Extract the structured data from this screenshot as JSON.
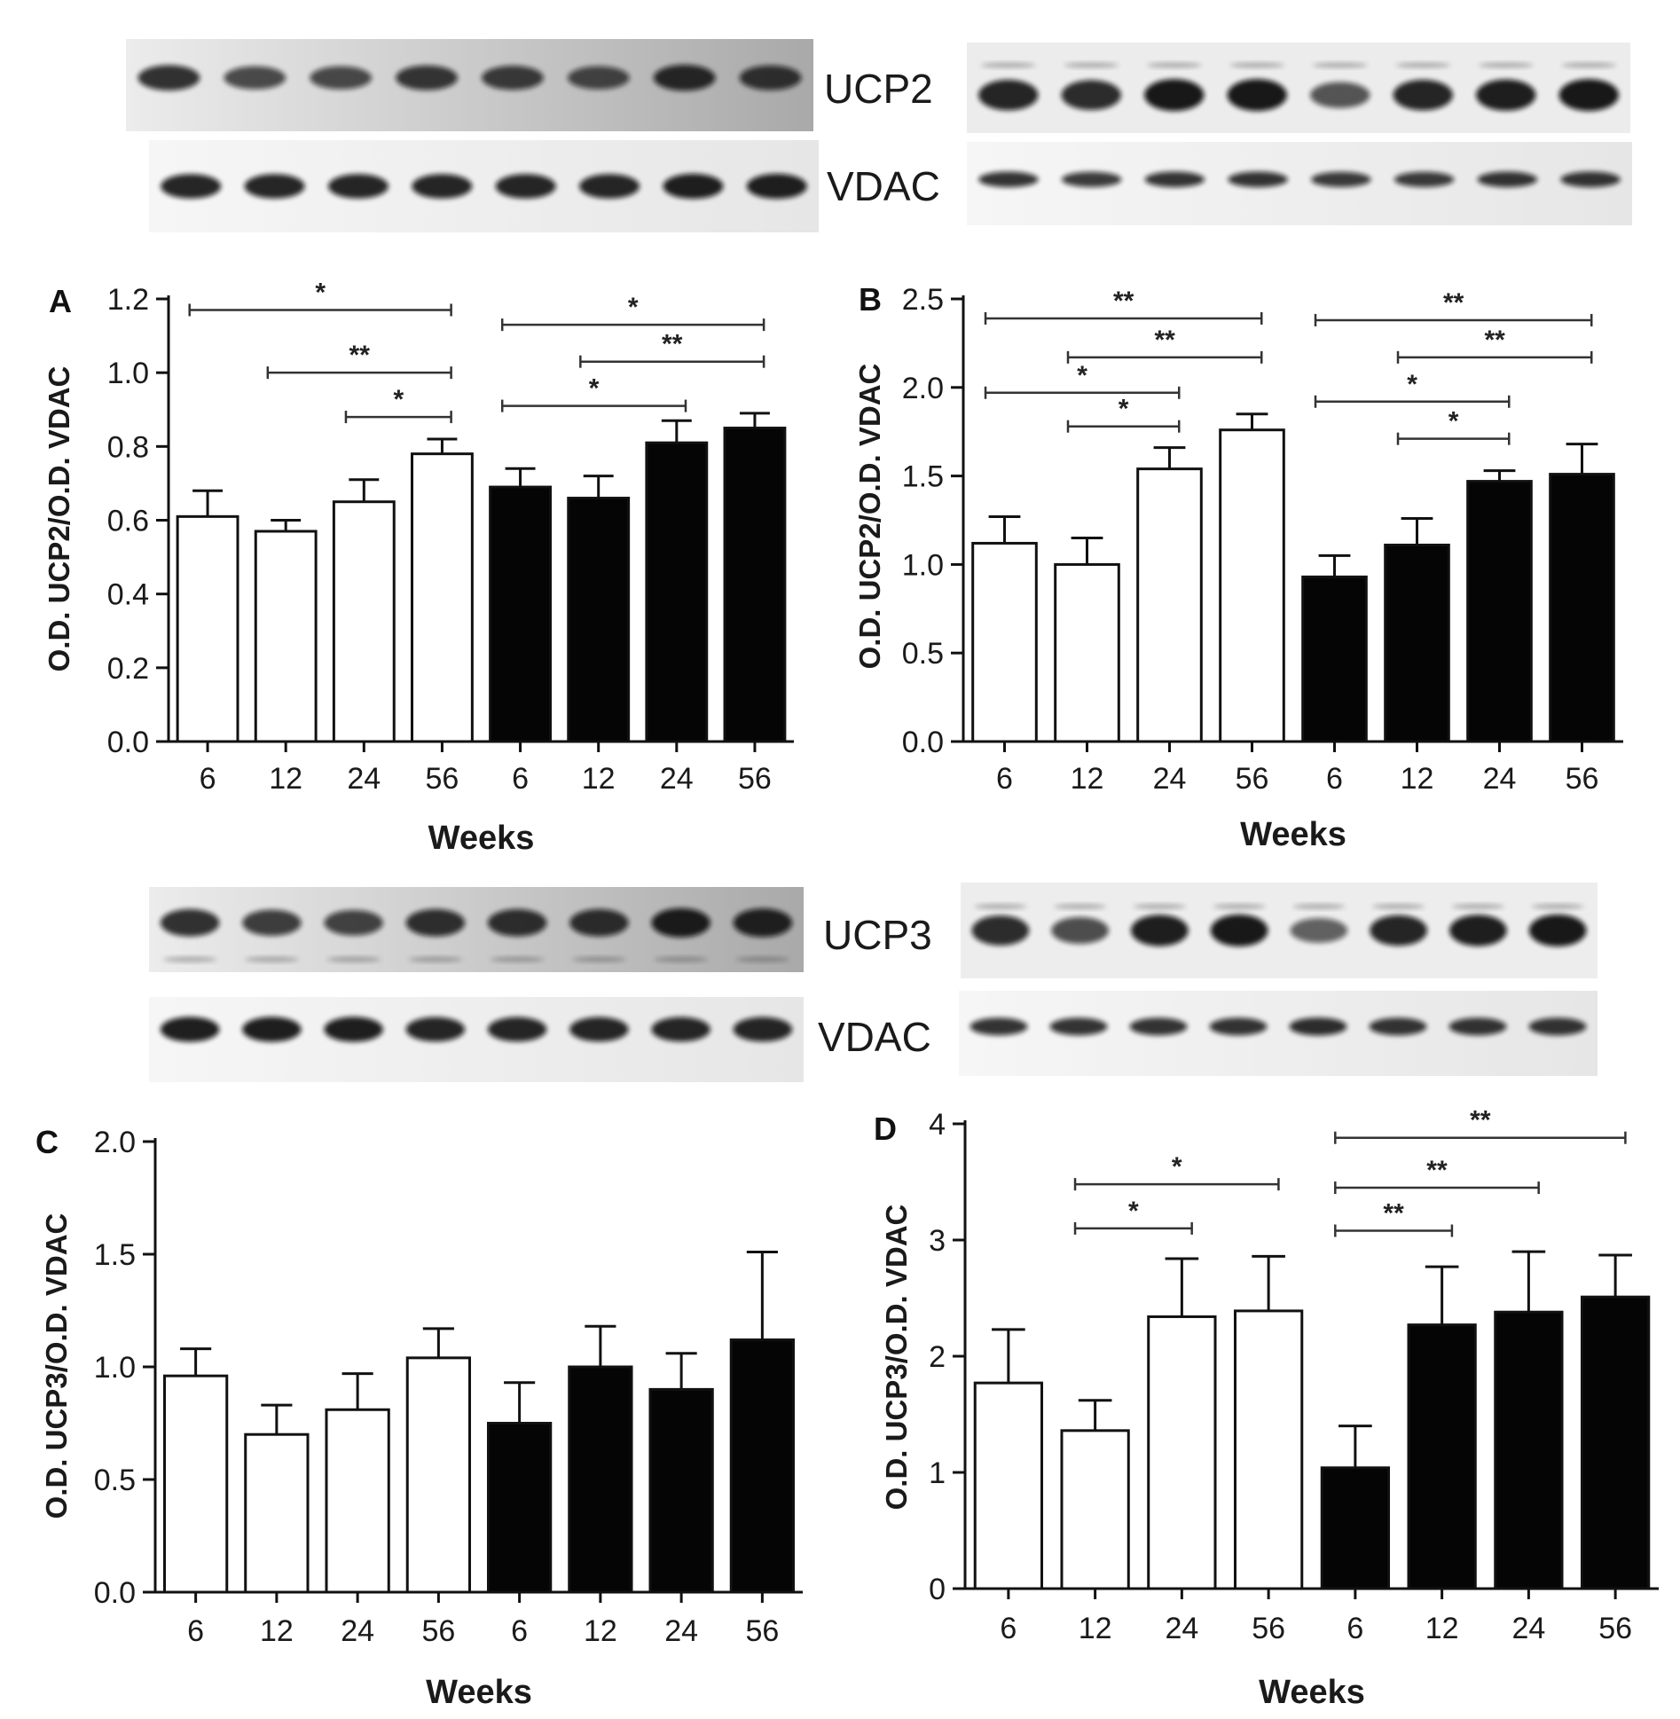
{
  "blots": {
    "top": {
      "protein_label": "UCP2",
      "control_label": "VDAC"
    },
    "bottom": {
      "protein_label": "UCP3",
      "control_label": "VDAC"
    }
  },
  "colors": {
    "group1_fill": "#ffffff",
    "group2_fill": "#050505",
    "stroke": "#111111"
  },
  "chart_data": [
    {
      "panel": "A",
      "type": "bar",
      "categories": [
        "6",
        "12",
        "24",
        "56",
        "6",
        "12",
        "24",
        "56"
      ],
      "series": [
        {
          "values": [
            0.61,
            0.57,
            0.65,
            0.78,
            0.69,
            0.66,
            0.81,
            0.85
          ],
          "errors": [
            0.07,
            0.03,
            0.06,
            0.04,
            0.05,
            0.06,
            0.06,
            0.04
          ]
        }
      ],
      "fills": [
        "white",
        "white",
        "white",
        "white",
        "black",
        "black",
        "black",
        "black"
      ],
      "xlabel": "Weeks",
      "ylabel": "O.D. UCP2/O.D. VDAC",
      "ylim": [
        0,
        1.2
      ],
      "yticks": [
        "0.0",
        "0.2",
        "0.4",
        "0.6",
        "0.8",
        "1.0",
        "1.2"
      ],
      "significance": [
        {
          "from": 0,
          "to": 3,
          "label": "*",
          "level": 1.17
        },
        {
          "from": 1,
          "to": 3,
          "label": "**",
          "level": 1.0
        },
        {
          "from": 2,
          "to": 3,
          "label": "*",
          "level": 0.88
        },
        {
          "from": 4,
          "to": 7,
          "label": "*",
          "level": 1.13
        },
        {
          "from": 5,
          "to": 7,
          "label": "**",
          "level": 1.03
        },
        {
          "from": 4,
          "to": 6,
          "label": "*",
          "level": 0.91
        }
      ]
    },
    {
      "panel": "B",
      "type": "bar",
      "categories": [
        "6",
        "12",
        "24",
        "56",
        "6",
        "12",
        "24",
        "56"
      ],
      "series": [
        {
          "values": [
            1.12,
            1.0,
            1.54,
            1.76,
            0.93,
            1.11,
            1.47,
            1.51
          ],
          "errors": [
            0.15,
            0.15,
            0.12,
            0.09,
            0.12,
            0.15,
            0.06,
            0.17
          ]
        }
      ],
      "fills": [
        "white",
        "white",
        "white",
        "white",
        "black",
        "black",
        "black",
        "black"
      ],
      "xlabel": "Weeks",
      "ylabel": "O.D. UCP2/O.D. VDAC",
      "ylim": [
        0,
        2.5
      ],
      "yticks": [
        "0.0",
        "0.5",
        "1.0",
        "1.5",
        "2.0",
        "2.5"
      ],
      "significance": [
        {
          "from": 0,
          "to": 3,
          "label": "**",
          "level": 2.39
        },
        {
          "from": 1,
          "to": 3,
          "label": "**",
          "level": 2.17
        },
        {
          "from": 0,
          "to": 2,
          "label": "*",
          "level": 1.97
        },
        {
          "from": 1,
          "to": 2,
          "label": "*",
          "level": 1.78
        },
        {
          "from": 4,
          "to": 7,
          "label": "**",
          "level": 2.38
        },
        {
          "from": 5,
          "to": 7,
          "label": "**",
          "level": 2.17
        },
        {
          "from": 4,
          "to": 6,
          "label": "*",
          "level": 1.92
        },
        {
          "from": 5,
          "to": 6,
          "label": "*",
          "level": 1.71
        }
      ]
    },
    {
      "panel": "C",
      "type": "bar",
      "categories": [
        "6",
        "12",
        "24",
        "56",
        "6",
        "12",
        "24",
        "56"
      ],
      "series": [
        {
          "values": [
            0.96,
            0.7,
            0.81,
            1.04,
            0.75,
            1.0,
            0.9,
            1.12
          ],
          "errors": [
            0.12,
            0.13,
            0.16,
            0.13,
            0.18,
            0.18,
            0.16,
            0.39
          ]
        }
      ],
      "fills": [
        "white",
        "white",
        "white",
        "white",
        "black",
        "black",
        "black",
        "black"
      ],
      "xlabel": "Weeks",
      "ylabel": "O.D. UCP3/O.D. VDAC",
      "ylim": [
        0,
        2.0
      ],
      "yticks": [
        "0.0",
        "0.5",
        "1.0",
        "1.5",
        "2.0"
      ],
      "significance": []
    },
    {
      "panel": "D",
      "type": "bar",
      "categories": [
        "6",
        "12",
        "24",
        "56",
        "6",
        "12",
        "24",
        "56"
      ],
      "series": [
        {
          "values": [
            1.77,
            1.36,
            2.34,
            2.39,
            1.04,
            2.27,
            2.38,
            2.51
          ],
          "errors": [
            0.46,
            0.26,
            0.5,
            0.47,
            0.36,
            0.5,
            0.52,
            0.36
          ]
        }
      ],
      "fills": [
        "white",
        "white",
        "white",
        "white",
        "black",
        "black",
        "black",
        "black"
      ],
      "xlabel": "Weeks",
      "ylabel": "O.D. UCP3/O.D. VDAC",
      "ylim": [
        0,
        4
      ],
      "yticks": [
        "0",
        "1",
        "2",
        "3",
        "4"
      ],
      "significance": [
        {
          "from": 1,
          "to": 3,
          "label": "*",
          "level": 3.48
        },
        {
          "from": 1,
          "to": 2,
          "label": "*",
          "level": 3.1
        },
        {
          "from": 4,
          "to": 7,
          "label": "**",
          "level": 3.88
        },
        {
          "from": 4,
          "to": 6,
          "label": "**",
          "level": 3.45
        },
        {
          "from": 4,
          "to": 5,
          "label": "**",
          "level": 3.08
        }
      ]
    }
  ]
}
